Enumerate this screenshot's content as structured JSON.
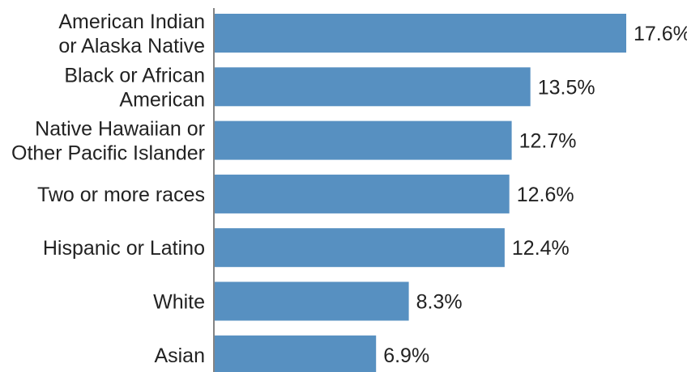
{
  "chart_data": {
    "type": "bar",
    "orientation": "horizontal",
    "categories": [
      [
        "American Indian",
        "or Alaska Native"
      ],
      [
        "Black or African",
        "American"
      ],
      [
        "Native Hawaiian or",
        "Other Pacific Islander"
      ],
      [
        "Two or more races"
      ],
      [
        "Hispanic or Latino"
      ],
      [
        "White"
      ],
      [
        "Asian"
      ]
    ],
    "values": [
      17.6,
      13.5,
      12.7,
      12.6,
      12.4,
      8.3,
      6.9
    ],
    "value_labels": [
      "17.6%",
      "13.5%",
      "12.7%",
      "12.6%",
      "12.4%",
      "8.3%",
      "6.9%"
    ],
    "xlim": [
      0,
      17.6
    ],
    "bar_color": "#5790c1",
    "title": "",
    "xlabel": "",
    "ylabel": "",
    "grid": false,
    "legend": "none"
  }
}
